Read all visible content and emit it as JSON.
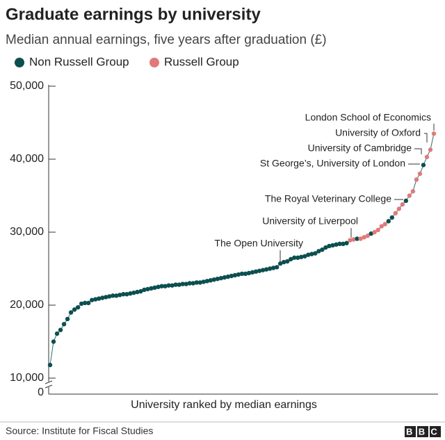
{
  "chart_data": {
    "type": "scatter",
    "title": "Graduate earnings by university",
    "subtitle": "Median annual earnings, five years after graduation (£)",
    "x_label": "University ranked by median earnings",
    "source": "Source: Institute for Fiscal Studies",
    "logo": "BBC",
    "categories": [
      null,
      null,
      null,
      null,
      null,
      null,
      null,
      null,
      null,
      null,
      null,
      null,
      null,
      null,
      null,
      null,
      null,
      null,
      null,
      null,
      null,
      null,
      null,
      null,
      null,
      null,
      null,
      null,
      null,
      null,
      null,
      null,
      null,
      null,
      null,
      null,
      null,
      null,
      null,
      null,
      null,
      null,
      null,
      null,
      null,
      null,
      null,
      null,
      null,
      null,
      null,
      null,
      null,
      null,
      null,
      null,
      null,
      null,
      null,
      null,
      null,
      null,
      null,
      null,
      null,
      null,
      null,
      null,
      null,
      null,
      null,
      null,
      null,
      null,
      null,
      null,
      null,
      null,
      null,
      null,
      null,
      null,
      null,
      null,
      null,
      null,
      null,
      null,
      null,
      null,
      null,
      null,
      null,
      null,
      null,
      null,
      null,
      null,
      null,
      null,
      null,
      null,
      null,
      null,
      null,
      null,
      null,
      null,
      null,
      null,
      null
    ],
    "series": [
      {
        "name": "Non Russell Group",
        "color": "#0d4f4f",
        "values": [
          11800,
          15000,
          16100,
          16600,
          17400,
          18100,
          19000,
          19400,
          19700,
          20200,
          20300,
          20300,
          20700,
          20800,
          20900,
          21000,
          21100,
          21200,
          21300,
          21300,
          21400,
          21500,
          21500,
          21600,
          21700,
          21800,
          21900,
          22100,
          22200,
          22300,
          22400,
          22500,
          22600,
          22600,
          22700,
          22700,
          22800,
          22800,
          22900,
          22900,
          23000,
          23000,
          23100,
          23100,
          23200,
          23300,
          23400,
          23500,
          23600,
          23700,
          23800,
          23900,
          24000,
          24100,
          24200,
          24300,
          24300,
          24400,
          24500,
          24600,
          24700,
          24800,
          24900,
          25000,
          25100,
          25200,
          25700,
          25900,
          26000,
          26300,
          26500,
          26500,
          26600,
          26700,
          26900,
          27000,
          27100,
          27400,
          27600,
          27900,
          28100,
          28200,
          28300,
          28400,
          28400,
          28500,
          null,
          null,
          29100,
          null,
          null,
          null,
          29800,
          null,
          null,
          null,
          null,
          31500,
          32000,
          null,
          null,
          null,
          34300,
          null,
          null,
          null,
          null,
          39200,
          null,
          null,
          null
        ]
      },
      {
        "name": "Russell Group",
        "color": "#e07a7a",
        "values": [
          null,
          null,
          null,
          null,
          null,
          null,
          null,
          null,
          null,
          null,
          null,
          null,
          null,
          null,
          null,
          null,
          null,
          null,
          null,
          null,
          null,
          null,
          null,
          null,
          null,
          null,
          null,
          null,
          null,
          null,
          null,
          null,
          null,
          null,
          null,
          null,
          null,
          null,
          null,
          null,
          null,
          null,
          null,
          null,
          null,
          null,
          null,
          null,
          null,
          null,
          null,
          null,
          null,
          null,
          null,
          null,
          null,
          null,
          null,
          null,
          null,
          null,
          null,
          null,
          null,
          null,
          null,
          null,
          null,
          null,
          null,
          null,
          null,
          null,
          null,
          null,
          null,
          null,
          null,
          null,
          null,
          null,
          null,
          null,
          null,
          null,
          28900,
          29000,
          null,
          29100,
          29300,
          29500,
          null,
          30000,
          30300,
          30800,
          31100,
          null,
          null,
          32600,
          33200,
          33800,
          null,
          35000,
          35600,
          37200,
          38000,
          null,
          40300,
          41300,
          43500
        ]
      }
    ],
    "ylim": [
      0,
      50000
    ],
    "y_break": [
      0,
      10000
    ],
    "yticks": [
      0,
      {
        "value": 10000,
        "label": "10,000"
      },
      {
        "value": 20000,
        "label": "20,000"
      },
      {
        "value": 30000,
        "label": "30,000"
      },
      {
        "value": 40000,
        "label": "40,000"
      },
      {
        "value": 50000,
        "label": "50,000"
      }
    ],
    "legend": "top-left",
    "annotations": [
      "London School of Economics",
      "University of Oxford",
      "University of Cambridge",
      "St George’s, University of London",
      "The Royal Veterinary College",
      "University of Liverpool",
      "The Open University"
    ]
  }
}
